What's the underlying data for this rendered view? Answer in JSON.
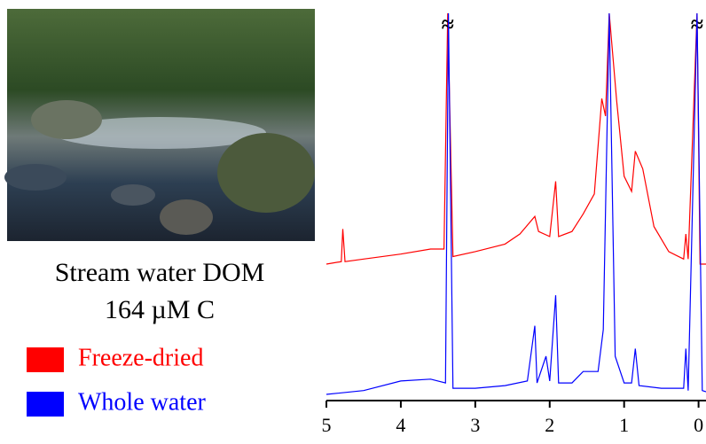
{
  "caption": {
    "title": "Stream water DOM",
    "subtitle": "164 µM C"
  },
  "chart_data": [
    {
      "type": "line",
      "x": [
        5.0,
        4.8,
        4.78,
        4.75,
        4.5,
        4.0,
        3.6,
        3.42,
        3.37,
        3.3,
        3.0,
        2.6,
        2.4,
        2.2,
        2.15,
        2.0,
        1.92,
        1.88,
        1.7,
        1.55,
        1.4,
        1.3,
        1.25,
        1.2,
        1.1,
        1.0,
        0.9,
        0.85,
        0.75,
        0.6,
        0.4,
        0.2,
        0.17,
        0.14,
        0.02,
        -0.02,
        -0.1
      ],
      "series": [
        {
          "name": "Freeze-dried",
          "color": "#ff0000",
          "values": [
            0,
            1,
            14,
            1,
            2,
            4,
            6,
            6,
            100,
            3,
            5,
            8,
            12,
            19,
            13,
            11,
            33,
            11,
            13,
            20,
            28,
            66,
            59,
            100,
            65,
            35,
            29,
            45,
            38,
            15,
            5,
            2,
            12,
            2,
            100,
            0,
            0
          ]
        }
      ],
      "xlim": [
        5,
        -0.1
      ],
      "ylim": [
        0,
        100
      ],
      "annotations": [
        {
          "text": "≈",
          "x": 3.37
        },
        {
          "text": "≈",
          "x": 0.02
        }
      ]
    },
    {
      "type": "line",
      "x": [
        5.0,
        4.5,
        4.0,
        3.6,
        3.4,
        3.36,
        3.3,
        3.0,
        2.6,
        2.3,
        2.2,
        2.17,
        2.05,
        2.0,
        1.92,
        1.88,
        1.7,
        1.55,
        1.35,
        1.28,
        1.2,
        1.12,
        1.0,
        0.9,
        0.85,
        0.8,
        0.5,
        0.2,
        0.17,
        0.14,
        0.02,
        -0.05,
        -0.1
      ],
      "series": [
        {
          "name": "Whole water",
          "color": "#0000ff",
          "values": [
            0,
            1,
            3.5,
            4,
            3,
            100,
            1.6,
            1.6,
            2.3,
            3.5,
            18,
            3,
            10,
            3.5,
            26,
            3,
            3,
            6,
            6,
            17,
            100,
            10,
            3,
            3,
            12,
            2.3,
            1.6,
            1.6,
            12,
            1,
            100,
            1,
            0.7
          ]
        }
      ],
      "xlim": [
        5,
        -0.1
      ],
      "ylim": [
        0,
        100
      ],
      "xticks": [
        5,
        4,
        3,
        2,
        1,
        0
      ]
    }
  ]
}
